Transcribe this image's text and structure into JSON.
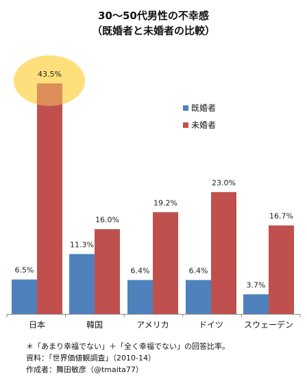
{
  "chart_data": {
    "type": "bar",
    "title": "30〜50代男性の不幸感",
    "subtitle": "（既婚者と未婚者の比較）",
    "categories": [
      "日本",
      "韓国",
      "アメリカ",
      "ドイツ",
      "スウェーデン"
    ],
    "series": [
      {
        "name": "既婚者",
        "color": "#4F81BD",
        "values": [
          6.5,
          11.3,
          6.4,
          6.4,
          3.7
        ]
      },
      {
        "name": "未婚者",
        "color": "#C0504D",
        "values": [
          43.5,
          16.0,
          19.2,
          23.0,
          16.7
        ]
      }
    ],
    "value_labels": [
      [
        "6.5%",
        "11.3%",
        "6.4%",
        "6.4%",
        "3.7%"
      ],
      [
        "43.5%",
        "16.0%",
        "19.2%",
        "23.0%",
        "16.7%"
      ]
    ],
    "ylim": [
      0,
      45
    ],
    "grid": false,
    "legend_position": "right",
    "highlight": {
      "category": "日本",
      "series": "未婚者",
      "color": "#FFD966"
    }
  },
  "notes": [
    "＊「あまり幸福でない」＋「全く幸福でない」の回答比率。",
    "資料：「世界価値観調査」（2010-14）",
    "作成者：舞田敏彦（@tmaita77）"
  ]
}
